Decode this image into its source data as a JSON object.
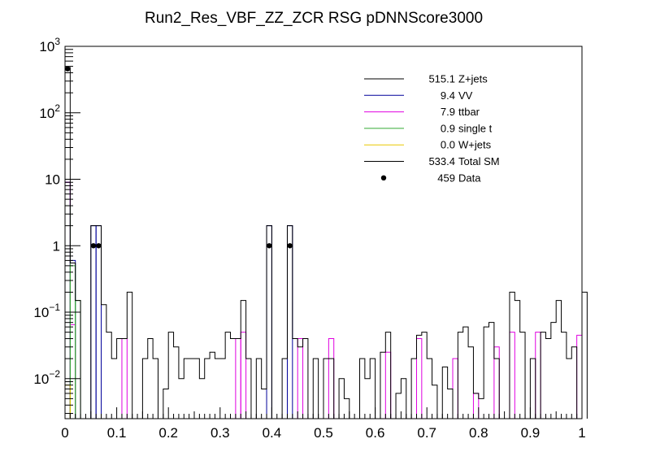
{
  "chart_data": {
    "type": "histogram",
    "title": "Run2_Res_VBF_ZZ_ZCR RSG  pDNNScore3000",
    "xlabel": "",
    "ylabel": "",
    "xlim": [
      0,
      1
    ],
    "ylim": [
      0.0025,
      1000
    ],
    "yscale": "log",
    "x_ticks": [
      {
        "value": 0,
        "label": "0"
      },
      {
        "value": 0.1,
        "label": "0.1"
      },
      {
        "value": 0.2,
        "label": "0.2"
      },
      {
        "value": 0.3,
        "label": "0.3"
      },
      {
        "value": 0.4,
        "label": "0.4"
      },
      {
        "value": 0.5,
        "label": "0.5"
      },
      {
        "value": 0.6,
        "label": "0.6"
      },
      {
        "value": 0.7,
        "label": "0.7"
      },
      {
        "value": 0.8,
        "label": "0.8"
      },
      {
        "value": 0.9,
        "label": "0.9"
      },
      {
        "value": 1,
        "label": "1"
      }
    ],
    "y_ticks": [
      {
        "value": 0.01,
        "base": "10",
        "exp": "−2"
      },
      {
        "value": 0.1,
        "base": "10",
        "exp": "−1"
      },
      {
        "value": 1,
        "base": "1",
        "exp": ""
      },
      {
        "value": 10,
        "base": "10",
        "exp": ""
      },
      {
        "value": 100,
        "base": "10",
        "exp": "2"
      },
      {
        "value": 1000,
        "base": "10",
        "exp": "3"
      }
    ],
    "bin_width": 0.01,
    "legend_position": "top-right",
    "series": [
      {
        "name": "Z+jets",
        "yield": "515.1",
        "color": "#000000",
        "style": "hist",
        "show": false,
        "points": []
      },
      {
        "name": "VV",
        "yield": "9.4",
        "color": "#00009a",
        "style": "hist",
        "show": true,
        "points": [
          [
            0.0,
            9.0
          ],
          [
            0.01,
            0.6
          ],
          [
            0.05,
            2.0
          ],
          [
            0.06,
            2.0
          ],
          [
            0.39,
            2.0
          ],
          [
            0.43,
            2.0
          ]
        ]
      },
      {
        "name": "ttbar",
        "yield": "7.9",
        "color": "#e000e0",
        "style": "hist",
        "show": true,
        "points": [
          [
            0.0,
            9.0
          ],
          [
            0.01,
            0.065
          ],
          [
            0.11,
            0.04
          ],
          [
            0.33,
            0.04
          ],
          [
            0.34,
            0.05
          ],
          [
            0.45,
            0.04
          ],
          [
            0.51,
            0.04
          ],
          [
            0.62,
            0.025
          ],
          [
            0.68,
            0.04
          ],
          [
            0.75,
            0.02
          ],
          [
            0.79,
            0.006
          ],
          [
            0.83,
            0.03
          ],
          [
            0.86,
            0.05
          ],
          [
            0.91,
            0.05
          ],
          [
            0.99,
            0.045
          ]
        ]
      },
      {
        "name": "single t",
        "yield": "0.9",
        "color": "#33aa33",
        "style": "hist",
        "show": true,
        "points": [
          [
            0.0,
            4.0
          ],
          [
            0.01,
            0.5
          ],
          [
            0.02,
            0.15
          ]
        ]
      },
      {
        "name": "W+jets",
        "yield": "0.0",
        "color": "#e8c800",
        "style": "hist",
        "show": true,
        "points": [
          [
            0.0,
            0.008
          ]
        ]
      },
      {
        "name": "Total SM",
        "yield": "533.4",
        "color": "#000000",
        "style": "hist",
        "show": true,
        "values": [
          480,
          0.55,
          0.15,
          0.0025,
          0.0025,
          2.0,
          2.0,
          0.13,
          0.05,
          0.02,
          0.04,
          0.04,
          0.2,
          0.0025,
          0.0025,
          0.02,
          0.04,
          0.02,
          0.0025,
          0.007,
          0.05,
          0.03,
          0.01,
          0.02,
          0.02,
          0.02,
          0.01,
          0.02,
          0.025,
          0.02,
          0.02,
          0.05,
          0.04,
          0.04,
          0.15,
          0.02,
          0.0025,
          0.02,
          0.007,
          2.0,
          0.0025,
          0.0025,
          0.02,
          2.0,
          0.04,
          0.03,
          0.04,
          0.0025,
          0.02,
          0.0025,
          0.02,
          0.02,
          0.0025,
          0.01,
          0.005,
          0.0025,
          0.0025,
          0.02,
          0.01,
          0.02,
          0.0025,
          0.025,
          0.05,
          0.0025,
          0.006,
          0.01,
          0.0025,
          0.02,
          0.045,
          0.05,
          0.02,
          0.008,
          0.0025,
          0.015,
          0.007,
          0.0025,
          0.05,
          0.06,
          0.03,
          0.006,
          0.005,
          0.06,
          0.07,
          0.02,
          0.0025,
          0.0025,
          0.2,
          0.15,
          0.05,
          0.0025,
          0.02,
          0.0025,
          0.05,
          0.04,
          0.07,
          0.15,
          0.05,
          0.02,
          0.03,
          0.0025,
          0.2
        ]
      },
      {
        "name": "Data",
        "yield": "459",
        "color": "#000000",
        "style": "points",
        "show": true,
        "points": [
          [
            0.005,
            459
          ],
          [
            0.055,
            1
          ],
          [
            0.065,
            1
          ],
          [
            0.395,
            1
          ],
          [
            0.435,
            1
          ]
        ]
      }
    ]
  }
}
